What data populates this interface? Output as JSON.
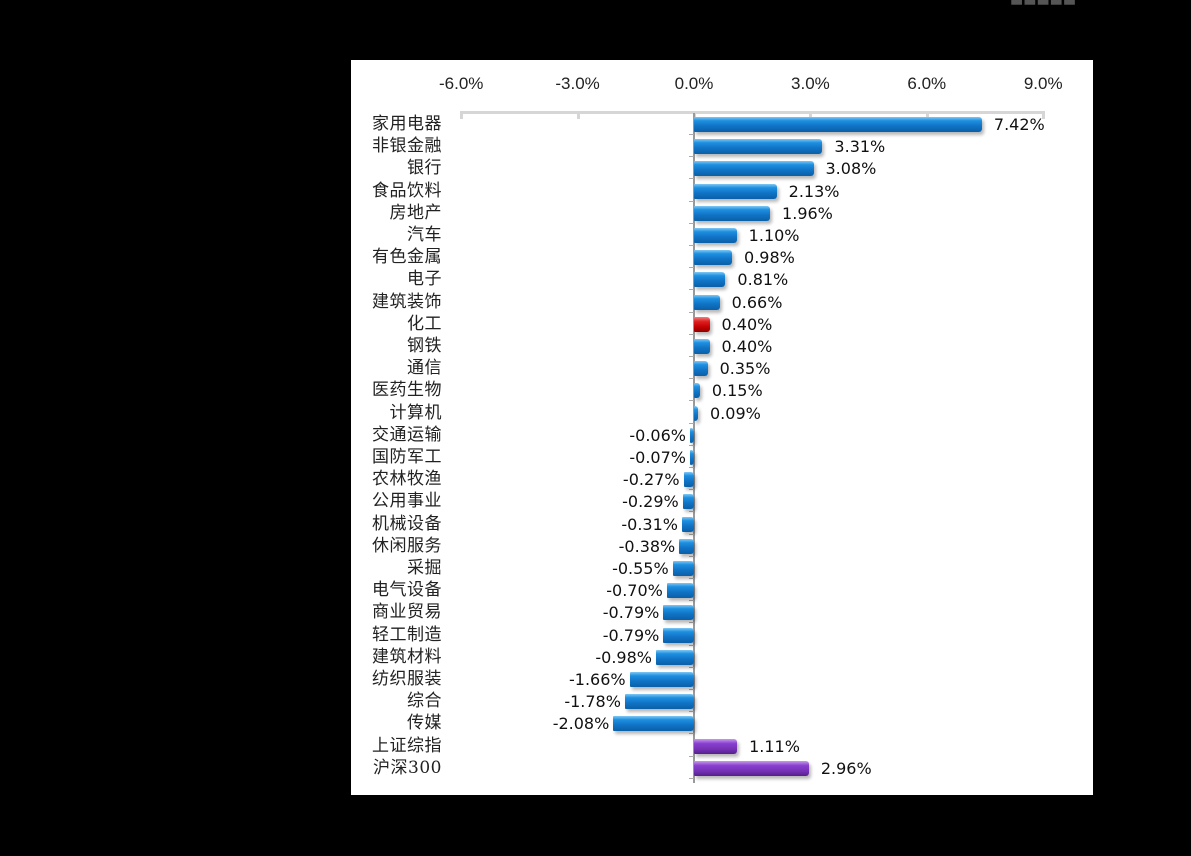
{
  "chart_data": {
    "type": "bar",
    "orientation": "horizontal",
    "title": "",
    "xlabel": "",
    "ylabel": "",
    "xlim": [
      -6.0,
      9.0
    ],
    "x_ticks": [
      "-6.0%",
      "-3.0%",
      "0.0%",
      "3.0%",
      "6.0%",
      "9.0%"
    ],
    "x_tick_values": [
      -6,
      -3,
      0,
      3,
      6,
      9
    ],
    "grid": false,
    "legend": null,
    "categories": [
      "家用电器",
      "非银金融",
      "银行",
      "食品饮料",
      "房地产",
      "汽车",
      "有色金属",
      "电子",
      "建筑装饰",
      "化工",
      "钢铁",
      "通信",
      "医药生物",
      "计算机",
      "交通运输",
      "国防军工",
      "农林牧渔",
      "公用事业",
      "机械设备",
      "休闲服务",
      "采掘",
      "电气设备",
      "商业贸易",
      "轻工制造",
      "建筑材料",
      "纺织服装",
      "综合",
      "传媒",
      "上证综指",
      "沪深300"
    ],
    "values": [
      7.42,
      3.31,
      3.08,
      2.13,
      1.96,
      1.1,
      0.98,
      0.81,
      0.66,
      0.4,
      0.4,
      0.35,
      0.15,
      0.09,
      -0.06,
      -0.07,
      -0.27,
      -0.29,
      -0.31,
      -0.38,
      -0.55,
      -0.7,
      -0.79,
      -0.79,
      -0.98,
      -1.66,
      -1.78,
      -2.08,
      1.11,
      2.96
    ],
    "labels": [
      "7.42%",
      "3.31%",
      "3.08%",
      "2.13%",
      "1.96%",
      "1.10%",
      "0.98%",
      "0.81%",
      "0.66%",
      "0.40%",
      "0.40%",
      "0.35%",
      "0.15%",
      "0.09%",
      "-0.06%",
      "-0.07%",
      "-0.27%",
      "-0.29%",
      "-0.31%",
      "-0.38%",
      "-0.55%",
      "-0.70%",
      "-0.79%",
      "-0.79%",
      "-0.98%",
      "-1.66%",
      "-1.78%",
      "-2.08%",
      "1.11%",
      "2.96%"
    ],
    "bar_colors": [
      "blue",
      "blue",
      "blue",
      "blue",
      "blue",
      "blue",
      "blue",
      "blue",
      "blue",
      "red",
      "blue",
      "blue",
      "blue",
      "blue",
      "blue",
      "blue",
      "blue",
      "blue",
      "blue",
      "blue",
      "blue",
      "blue",
      "blue",
      "blue",
      "blue",
      "blue",
      "blue",
      "blue",
      "purple",
      "purple"
    ],
    "colors": {
      "sector": "#1173c6",
      "highlight": "#c00000",
      "index": "#7330b3"
    }
  }
}
